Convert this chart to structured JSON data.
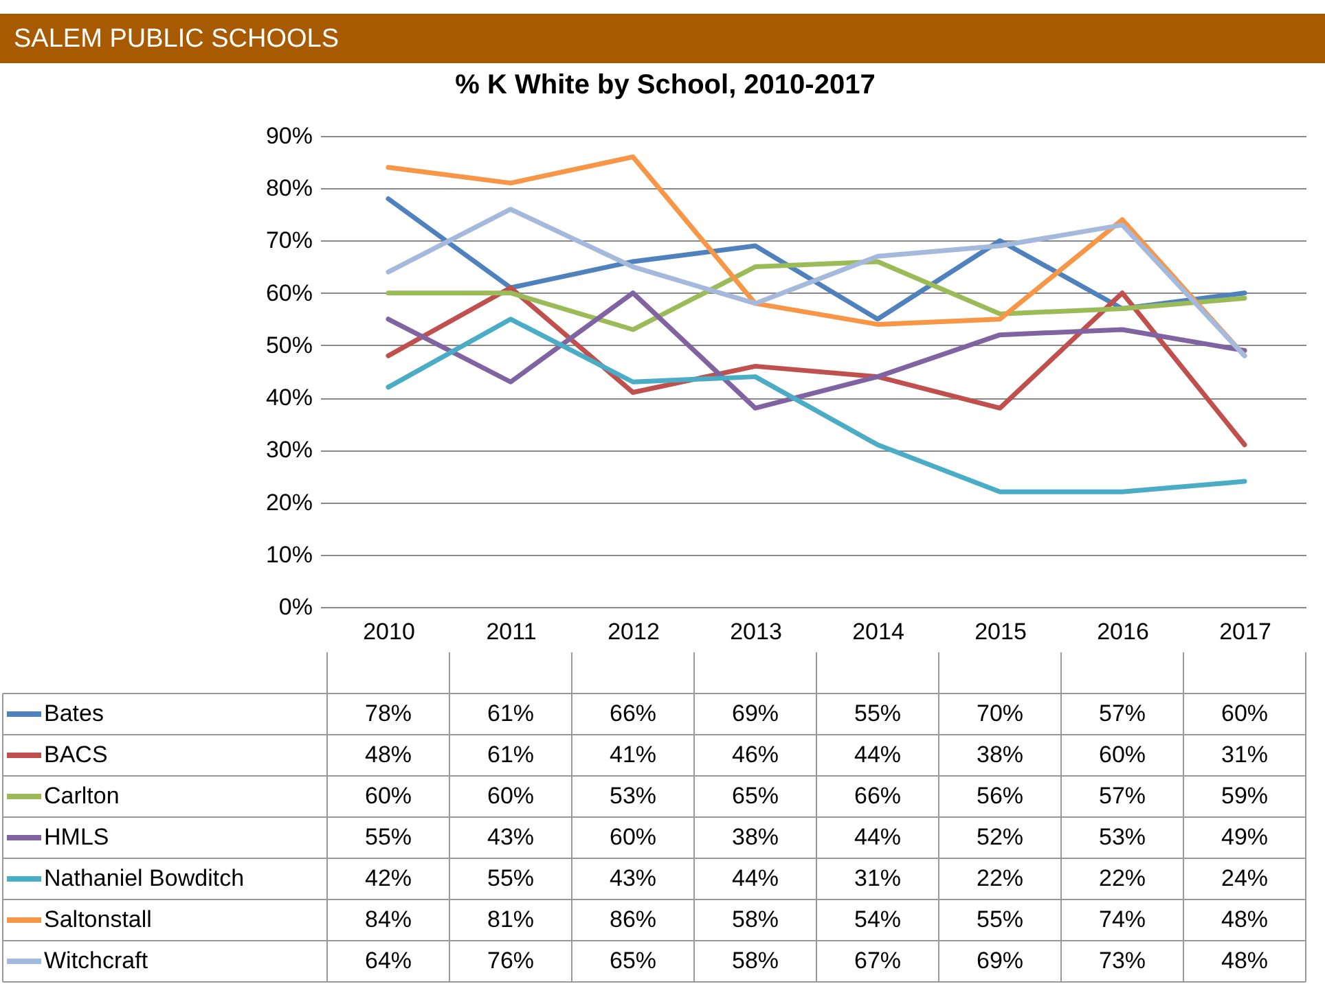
{
  "chart_data": {
    "type": "line",
    "title": "SALEM PUBLIC SCHOOLS",
    "subtitle": "% K White by School, 2010-2017",
    "categories": [
      "2010",
      "2011",
      "2012",
      "2013",
      "2014",
      "2015",
      "2016",
      "2017"
    ],
    "series": [
      {
        "name": "Bates",
        "color": "#4f81bd",
        "values": [
          78,
          61,
          66,
          69,
          55,
          70,
          57,
          60
        ],
        "value_labels": [
          "78%",
          "61%",
          "66%",
          "69%",
          "55%",
          "70%",
          "57%",
          "60%"
        ]
      },
      {
        "name": "BACS",
        "color": "#c0504d",
        "values": [
          48,
          61,
          41,
          46,
          44,
          38,
          60,
          31
        ],
        "value_labels": [
          "48%",
          "61%",
          "41%",
          "46%",
          "44%",
          "38%",
          "60%",
          "31%"
        ]
      },
      {
        "name": "Carlton",
        "color": "#9bbb59",
        "values": [
          60,
          60,
          53,
          65,
          66,
          56,
          57,
          59
        ],
        "value_labels": [
          "60%",
          "60%",
          "53%",
          "65%",
          "66%",
          "56%",
          "57%",
          "59%"
        ]
      },
      {
        "name": "HMLS",
        "color": "#8064a2",
        "values": [
          55,
          43,
          60,
          38,
          44,
          52,
          53,
          49
        ],
        "value_labels": [
          "55%",
          "43%",
          "60%",
          "38%",
          "44%",
          "52%",
          "53%",
          "49%"
        ]
      },
      {
        "name": "Nathaniel Bowditch",
        "color": "#4bacc6",
        "values": [
          42,
          55,
          43,
          44,
          31,
          22,
          22,
          24
        ],
        "value_labels": [
          "42%",
          "55%",
          "43%",
          "44%",
          "31%",
          "22%",
          "22%",
          "24%"
        ]
      },
      {
        "name": "Saltonstall",
        "color": "#f79646",
        "values": [
          84,
          81,
          86,
          58,
          54,
          55,
          74,
          48
        ],
        "value_labels": [
          "84%",
          "81%",
          "86%",
          "58%",
          "54%",
          "55%",
          "74%",
          "48%"
        ]
      },
      {
        "name": "Witchcraft",
        "color": "#a5b9dc",
        "values": [
          64,
          76,
          65,
          58,
          67,
          69,
          73,
          48
        ],
        "value_labels": [
          "64%",
          "76%",
          "65%",
          "58%",
          "67%",
          "69%",
          "73%",
          "48%"
        ]
      }
    ],
    "ylim": [
      0,
      90
    ],
    "yticks": [
      {
        "value": 0,
        "label": "0%"
      },
      {
        "value": 10,
        "label": "10%"
      },
      {
        "value": 20,
        "label": "20%"
      },
      {
        "value": 30,
        "label": "30%"
      },
      {
        "value": 40,
        "label": "40%"
      },
      {
        "value": 50,
        "label": "50%"
      },
      {
        "value": 60,
        "label": "60%"
      },
      {
        "value": 70,
        "label": "70%"
      },
      {
        "value": 80,
        "label": "80%"
      },
      {
        "value": 90,
        "label": "90%"
      }
    ],
    "grid": "y",
    "legend": "bottom",
    "marker": "none",
    "line_style": "solid"
  }
}
